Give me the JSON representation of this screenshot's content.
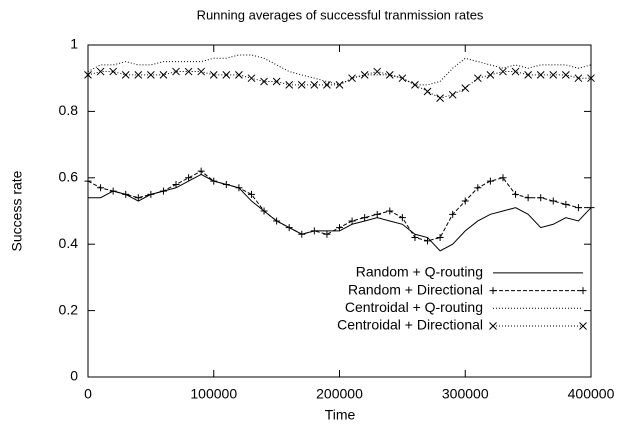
{
  "chart_data": {
    "type": "line",
    "title": "Running averages of successful tranmission rates",
    "x_label": "Time",
    "y_label": "Success rate",
    "x": [
      0,
      10000,
      20000,
      30000,
      40000,
      50000,
      60000,
      70000,
      80000,
      90000,
      100000,
      110000,
      120000,
      130000,
      140000,
      150000,
      160000,
      170000,
      180000,
      190000,
      200000,
      210000,
      220000,
      230000,
      240000,
      250000,
      260000,
      270000,
      280000,
      290000,
      300000,
      310000,
      320000,
      330000,
      340000,
      350000,
      360000,
      370000,
      380000,
      390000,
      400000
    ],
    "series": [
      {
        "name": "Random + Q-routing",
        "color": "#000000",
        "style": "solid",
        "values": [
          0.54,
          0.54,
          0.56,
          0.55,
          0.53,
          0.55,
          0.56,
          0.57,
          0.59,
          0.61,
          0.59,
          0.58,
          0.57,
          0.53,
          0.5,
          0.47,
          0.45,
          0.43,
          0.44,
          0.44,
          0.44,
          0.46,
          0.47,
          0.48,
          0.47,
          0.46,
          0.43,
          0.42,
          0.38,
          0.4,
          0.44,
          0.47,
          0.49,
          0.5,
          0.51,
          0.49,
          0.45,
          0.46,
          0.48,
          0.47,
          0.51
        ]
      },
      {
        "name": "Random + Directional",
        "color": "#000000",
        "style": "dashed",
        "marker": "+",
        "values": [
          0.59,
          0.57,
          0.56,
          0.55,
          0.54,
          0.55,
          0.56,
          0.58,
          0.6,
          0.62,
          0.59,
          0.58,
          0.57,
          0.55,
          0.5,
          0.47,
          0.45,
          0.43,
          0.44,
          0.43,
          0.45,
          0.47,
          0.48,
          0.49,
          0.5,
          0.48,
          0.42,
          0.41,
          0.42,
          0.49,
          0.53,
          0.57,
          0.59,
          0.6,
          0.55,
          0.54,
          0.54,
          0.53,
          0.52,
          0.51,
          0.51
        ]
      },
      {
        "name": "Centroidal + Q-routing",
        "color": "#000000",
        "style": "dotted",
        "values": [
          0.92,
          0.94,
          0.94,
          0.95,
          0.94,
          0.94,
          0.95,
          0.95,
          0.95,
          0.95,
          0.96,
          0.96,
          0.97,
          0.97,
          0.96,
          0.94,
          0.92,
          0.91,
          0.9,
          0.89,
          0.88,
          0.9,
          0.91,
          0.91,
          0.91,
          0.9,
          0.88,
          0.88,
          0.89,
          0.93,
          0.96,
          0.95,
          0.94,
          0.93,
          0.94,
          0.93,
          0.94,
          0.94,
          0.94,
          0.93,
          0.94
        ]
      },
      {
        "name": "Centroidal + Directional",
        "color": "#000000",
        "style": "dotted",
        "marker": "x",
        "values": [
          0.91,
          0.92,
          0.92,
          0.91,
          0.91,
          0.91,
          0.91,
          0.92,
          0.92,
          0.92,
          0.91,
          0.91,
          0.91,
          0.9,
          0.89,
          0.89,
          0.88,
          0.88,
          0.88,
          0.88,
          0.88,
          0.9,
          0.91,
          0.92,
          0.91,
          0.9,
          0.88,
          0.86,
          0.84,
          0.85,
          0.87,
          0.9,
          0.91,
          0.92,
          0.92,
          0.91,
          0.91,
          0.91,
          0.91,
          0.9,
          0.9
        ]
      }
    ],
    "xlim": [
      0,
      400000
    ],
    "xticks": [
      0,
      100000,
      200000,
      300000,
      400000
    ],
    "ylim": [
      0,
      1
    ],
    "yticks": [
      0,
      0.2,
      0.4,
      0.6,
      0.8,
      1
    ],
    "grid": false,
    "legend": "bottom right"
  }
}
